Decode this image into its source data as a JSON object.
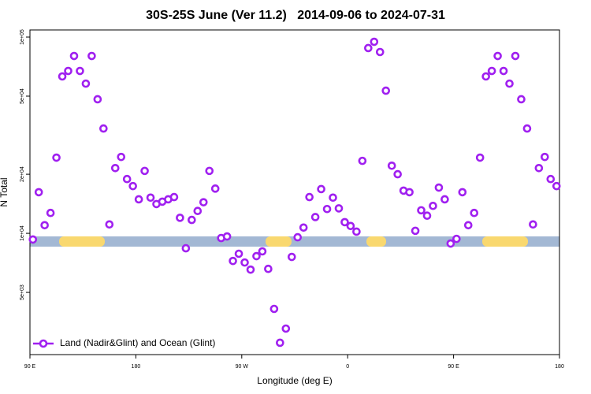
{
  "chart_data": {
    "type": "scatter",
    "title": "30S-25S June (Ver 11.2)   2014-09-06 to 2024-07-31",
    "x_label": "Longitude (deg E)",
    "y_label": "N Total",
    "xlim": [
      90,
      540
    ],
    "xticks": [
      {
        "value": 90,
        "label": "90 E"
      },
      180,
      {
        "value": 270,
        "label": "90 W"
      },
      {
        "value": 360,
        "label": "0"
      },
      {
        "value": 450,
        "label": "90 E"
      },
      {
        "value": 540,
        "label": "180"
      }
    ],
    "ylim": [
      2410,
      108700
    ],
    "log_y": true,
    "yticks": [
      {
        "value": 5000,
        "label": "5e+03"
      },
      {
        "value": 10000,
        "label": "1e+04"
      },
      {
        "value": 20000,
        "label": "2e+04"
      },
      {
        "value": 50000,
        "label": "5e+04"
      },
      {
        "value": 100000,
        "label": "1e+05"
      }
    ],
    "legend": "lower left",
    "series": [
      {
        "name": "Land (Nadir&Glint) and Ocean (Glint)",
        "color": "#a020f0",
        "x": [
          92.5,
          97.5,
          102.5,
          107.5,
          112.5,
          117.5,
          122.5,
          127.5,
          132.5,
          137.5,
          142.5,
          147.5,
          152.5,
          157.5,
          162.5,
          167.5,
          172.5,
          177.5,
          182.5,
          187.5,
          192.5,
          197.5,
          202.5,
          207.5,
          212.5,
          217.5,
          222.5,
          227.5,
          232.5,
          237.5,
          242.5,
          247.5,
          252.5,
          257.5,
          262.5,
          267.5,
          272.5,
          277.5,
          282.5,
          287.5,
          292.5,
          297.5,
          302.5,
          307.5,
          312.5,
          317.5,
          322.5,
          327.5,
          332.5,
          337.5,
          342.5,
          347.5,
          352.5,
          357.5,
          362.5,
          367.5,
          372.5,
          377.5,
          382.5,
          387.5,
          392.5,
          397.5,
          402.5,
          407.5,
          412.5,
          417.5,
          422.5,
          427.5,
          432.5,
          437.5,
          442.5,
          447.5,
          452.5,
          457.5,
          462.5,
          467.5,
          472.5,
          477.5,
          482.5,
          487.5,
          492.5,
          497.5,
          502.5,
          507.5,
          512.5,
          517.5,
          522.5,
          527.5,
          532.5,
          537.5
        ],
        "values": [
          9300,
          16200,
          11000,
          12700,
          24300,
          63000,
          67200,
          80100,
          67200,
          57900,
          80100,
          48200,
          34200,
          11100,
          21500,
          24500,
          18900,
          17400,
          14900,
          20800,
          15200,
          14100,
          14500,
          14900,
          15300,
          12000,
          8390,
          11700,
          13000,
          14400,
          20800,
          16900,
          9460,
          9640,
          7230,
          7870,
          7100,
          6530,
          7650,
          8090,
          6590,
          4120,
          2770,
          3270,
          7580,
          9550,
          10700,
          15300,
          12100,
          16800,
          13300,
          15200,
          13400,
          11400,
          10900,
          10200,
          23400,
          87900,
          94600,
          83900,
          53300,
          22100,
          20000,
          16500,
          16200,
          10300,
          13100,
          12300,
          13800,
          17100,
          14900,
          8870,
          9370,
          16200,
          11000,
          12700,
          24300,
          63000,
          67200,
          80100,
          67200,
          57900,
          80100,
          48200,
          34200,
          11100,
          21500,
          24500,
          18900,
          17400
        ]
      }
    ]
  }
}
